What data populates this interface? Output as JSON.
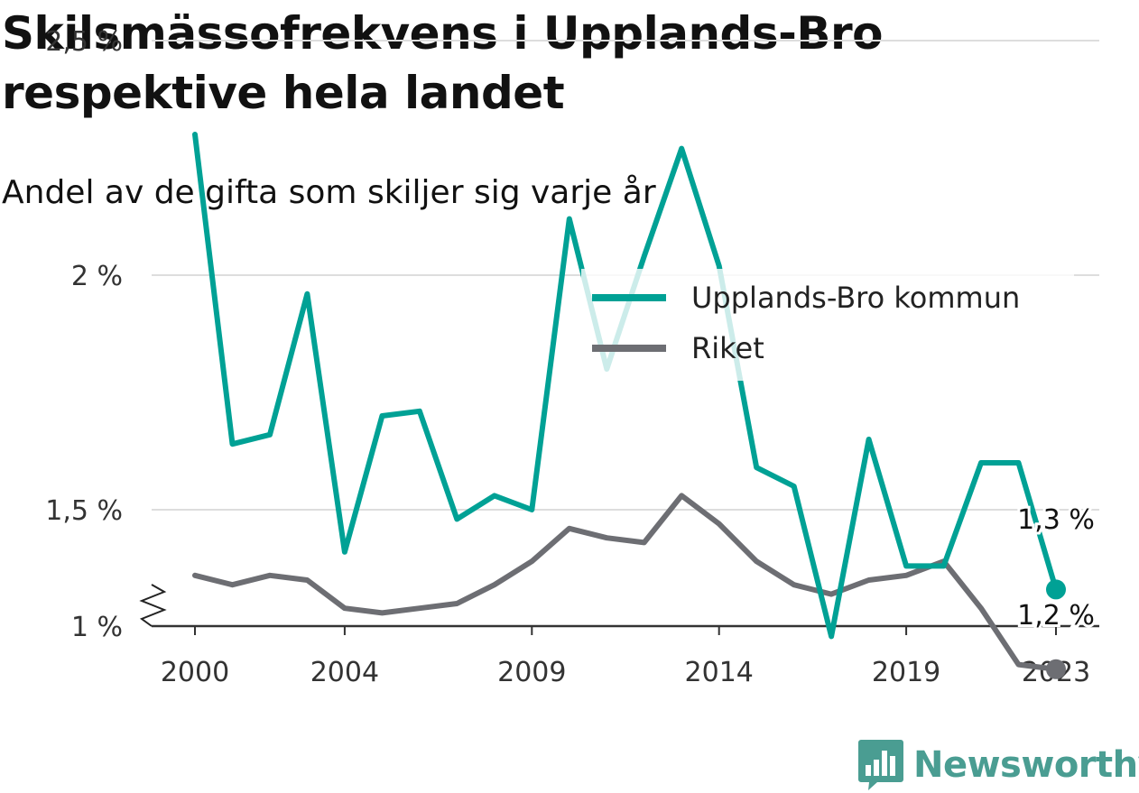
{
  "chart_data": {
    "type": "line",
    "title": "Skilsmässofrekvens i Upplands-Bro respektive hela landet",
    "subtitle": "Andel av de gifta som skiljer sig varje år",
    "x": [
      2000,
      2001,
      2002,
      2003,
      2004,
      2005,
      2006,
      2007,
      2008,
      2009,
      2010,
      2011,
      2012,
      2013,
      2014,
      2015,
      2016,
      2017,
      2018,
      2019,
      2020,
      2021,
      2022,
      2023
    ],
    "x_tick_labels": [
      "2000",
      "2004",
      "2009",
      "2014",
      "2019",
      "2023"
    ],
    "x_ticks": [
      2000,
      2004,
      2009,
      2014,
      2019,
      2023
    ],
    "y_tick_labels": [
      "1 %",
      "1,5 %",
      "2 %",
      "2,5 %"
    ],
    "y_ticks": [
      1,
      1.5,
      2,
      2.5
    ],
    "ylim": [
      1,
      2.5
    ],
    "y_axis_break": true,
    "grid": true,
    "legend_position": "top-right",
    "series": [
      {
        "name": "Upplands-Bro kommun",
        "color": "#00a195",
        "values": [
          2.3,
          1.64,
          1.66,
          1.96,
          1.41,
          1.7,
          1.71,
          1.48,
          1.53,
          1.5,
          2.12,
          1.8,
          2.04,
          2.27,
          2.02,
          1.59,
          1.55,
          1.23,
          1.65,
          1.38,
          1.38,
          1.6,
          1.6,
          1.33
        ],
        "end_label": "1,3 %"
      },
      {
        "name": "Riket",
        "color": "#6d6e73",
        "values": [
          1.36,
          1.34,
          1.36,
          1.35,
          1.29,
          1.28,
          1.29,
          1.3,
          1.34,
          1.39,
          1.46,
          1.44,
          1.43,
          1.53,
          1.47,
          1.39,
          1.34,
          1.32,
          1.35,
          1.36,
          1.39,
          1.29,
          1.17,
          1.16
        ],
        "end_label": "1,2 %"
      }
    ]
  },
  "brand": {
    "name": "Newsworthy",
    "icon": "bar-chart-badge-icon"
  }
}
